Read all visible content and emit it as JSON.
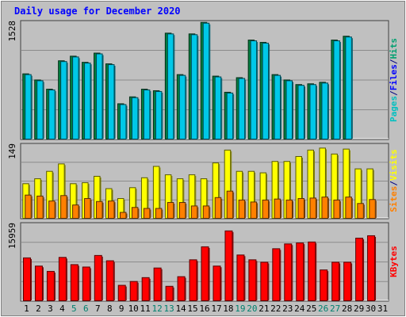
{
  "chart_data": {
    "type": "bar",
    "title": "Daily usage for December 2020",
    "categories": [
      "1",
      "2",
      "3",
      "4",
      "5",
      "6",
      "7",
      "8",
      "9",
      "10",
      "11",
      "12",
      "13",
      "14",
      "15",
      "16",
      "17",
      "18",
      "19",
      "20",
      "21",
      "22",
      "23",
      "24",
      "25",
      "26",
      "27",
      "28",
      "29",
      "30",
      "31"
    ],
    "weekend_days": [
      "5",
      "6",
      "12",
      "13",
      "19",
      "20",
      "26",
      "27"
    ],
    "panels": [
      {
        "id": "pages-files-hits",
        "ymax": 1528,
        "ymax_label": "1528",
        "right_label": [
          "Pages",
          "/",
          "Files",
          "/",
          "Hits"
        ],
        "right_label_colors": [
          "#00c0c0",
          "#000080",
          "#0000ff",
          "#000080",
          "#00a070"
        ],
        "series": [
          {
            "name": "Hits",
            "color": "#008040",
            "values": [
              850,
              770,
              650,
              1020,
              1080,
              1000,
              1120,
              980,
              460,
              550,
              650,
              630,
              1380,
              840,
              1370,
              1520,
              820,
              610,
              800,
              1290,
              1260,
              840,
              770,
              710,
              720,
              740,
              1290,
              1340,
              0,
              0,
              0
            ]
          },
          {
            "name": "Files",
            "color": "#00c8e8",
            "values": [
              840,
              760,
              640,
              1010,
              1070,
              990,
              1110,
              970,
              450,
              540,
              640,
              620,
              1370,
              830,
              1360,
              1510,
              810,
              600,
              790,
              1280,
              1250,
              830,
              760,
              700,
              710,
              730,
              1280,
              1330,
              0,
              0,
              0
            ]
          }
        ]
      },
      {
        "id": "sites-visits",
        "ymax": 149,
        "ymax_label": "149",
        "right_label": [
          "Sites",
          "/",
          "Visits"
        ],
        "right_label_colors": [
          "#ff8000",
          "#000080",
          "#ffff00"
        ],
        "series": [
          {
            "name": "Visits",
            "color": "#ffff00",
            "values": [
              70,
              80,
              95,
              110,
              70,
              72,
              85,
              60,
              40,
              62,
              82,
              105,
              88,
              80,
              88,
              80,
              112,
              138,
              95,
              95,
              92,
              115,
              115,
              125,
              138,
              142,
              130,
              140,
              100,
              100,
              0
            ]
          },
          {
            "name": "Sites",
            "color": "#ff8000",
            "values": [
              47,
              45,
              35,
              46,
              27,
              40,
              34,
              35,
              12,
              22,
              20,
              20,
              32,
              32,
              25,
              25,
              42,
              55,
              37,
              33,
              37,
              39,
              37,
              40,
              41,
              43,
              37,
              43,
              30,
              38,
              0
            ]
          }
        ]
      },
      {
        "id": "kbytes",
        "ymax": 15959,
        "ymax_label": "15959",
        "right_label": [
          "KBytes"
        ],
        "right_label_colors": [
          "#ff0000"
        ],
        "series": [
          {
            "name": "KBytes",
            "color": "#ff0000",
            "values": [
              8900,
              7200,
              6100,
              9000,
              7500,
              7000,
              9400,
              8300,
              3200,
              4000,
              4800,
              6800,
              3000,
              5000,
              8500,
              11200,
              7200,
              14500,
              9500,
              8500,
              8000,
              10800,
              11800,
              12000,
              12200,
              6400,
              8000,
              8000,
              13000,
              13500,
              0
            ]
          }
        ]
      }
    ],
    "colors": {
      "background": "#c0c0c0",
      "grid": "#808080",
      "title": "#0000ff",
      "weekday_label": "#000000",
      "weekend_label": "#00806e"
    }
  }
}
